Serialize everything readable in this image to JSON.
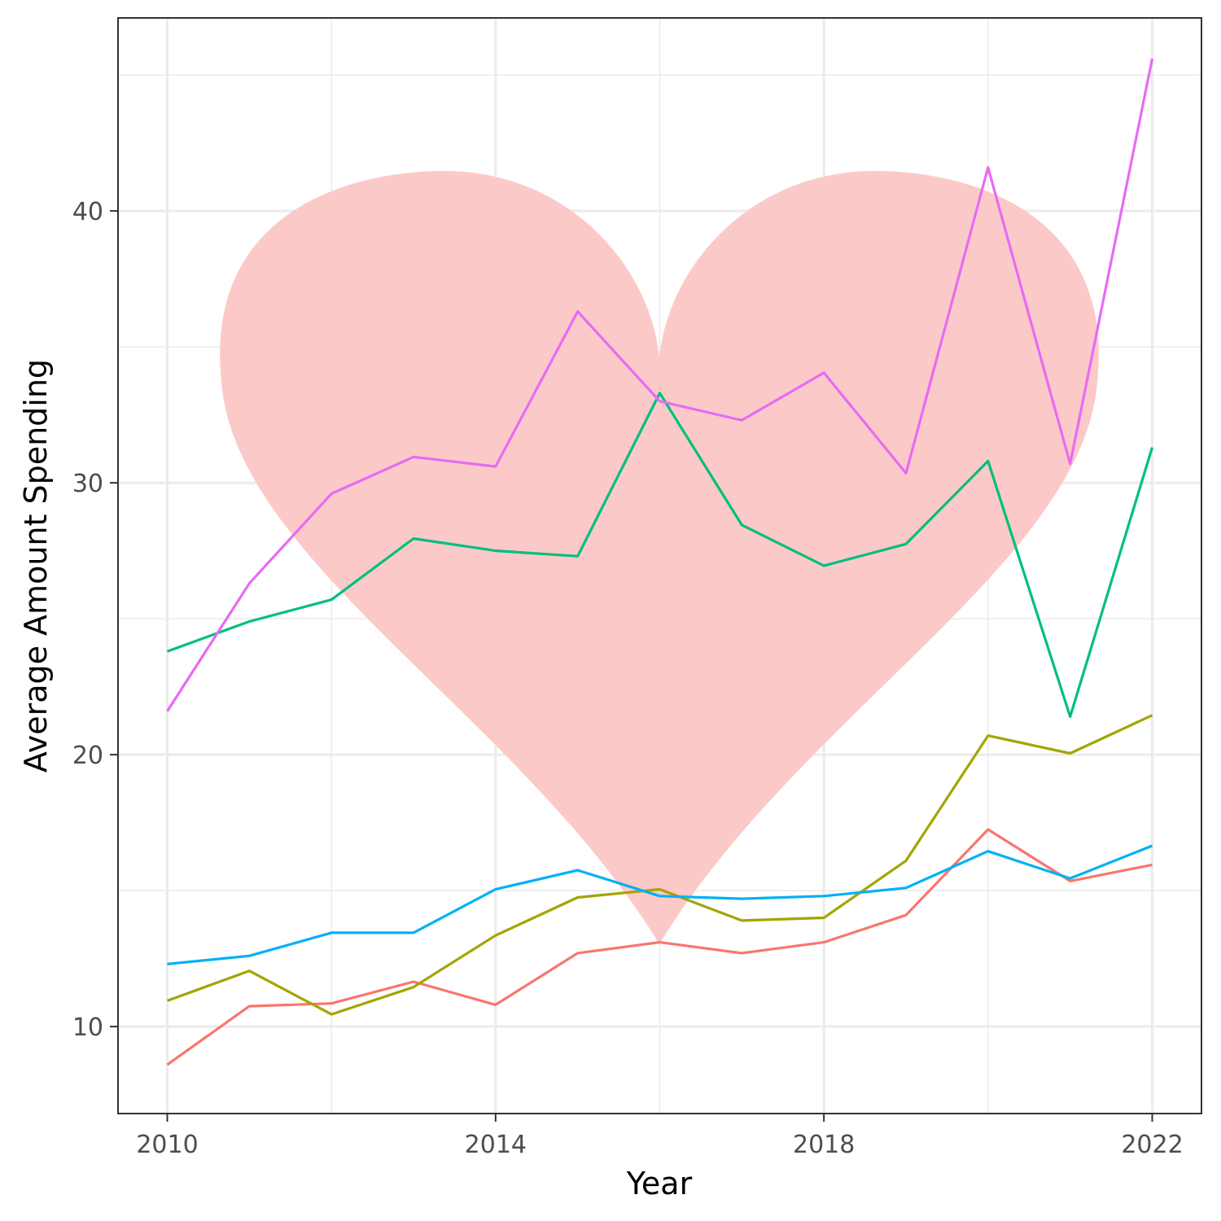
{
  "chart_data": {
    "type": "line",
    "title": "",
    "xlabel": "Year",
    "ylabel": "Average Amount Spending",
    "x": [
      2010,
      2011,
      2012,
      2013,
      2014,
      2015,
      2016,
      2017,
      2018,
      2019,
      2020,
      2021,
      2022
    ],
    "x_ticks": [
      2010,
      2014,
      2018,
      2022
    ],
    "x_tick_labels": [
      "2010",
      "2014",
      "2018",
      "2022"
    ],
    "y_ticks": [
      10,
      20,
      30,
      40
    ],
    "y_tick_labels": [
      "10",
      "20",
      "30",
      "40"
    ],
    "xlim": [
      2009.4,
      2022.6
    ],
    "ylim": [
      6.8,
      47.1
    ],
    "grid": true,
    "legend": "none",
    "background_shape": {
      "shape": "heart",
      "color": "#fcc9c9"
    },
    "series": [
      {
        "color": "#f8766d",
        "values": [
          8.6,
          10.75,
          10.85,
          11.65,
          10.8,
          12.7,
          13.1,
          12.7,
          13.1,
          14.1,
          17.25,
          15.35,
          15.95
        ]
      },
      {
        "color": "#a3a500",
        "values": [
          10.95,
          12.05,
          10.45,
          11.45,
          13.35,
          14.75,
          15.05,
          13.9,
          14.0,
          16.1,
          20.7,
          20.05,
          21.45
        ]
      },
      {
        "color": "#00bf7d",
        "values": [
          23.8,
          24.9,
          25.7,
          27.95,
          27.5,
          27.3,
          33.3,
          28.45,
          26.95,
          27.75,
          30.8,
          21.4,
          31.3
        ]
      },
      {
        "color": "#00b0f6",
        "values": [
          12.3,
          12.6,
          13.45,
          13.45,
          15.05,
          15.75,
          14.8,
          14.7,
          14.8,
          15.1,
          16.45,
          15.45,
          16.65
        ]
      },
      {
        "color": "#e76bf3",
        "values": [
          21.6,
          26.3,
          29.6,
          30.95,
          30.6,
          36.3,
          33.0,
          32.3,
          34.05,
          30.35,
          41.6,
          30.7,
          45.6
        ]
      }
    ]
  }
}
